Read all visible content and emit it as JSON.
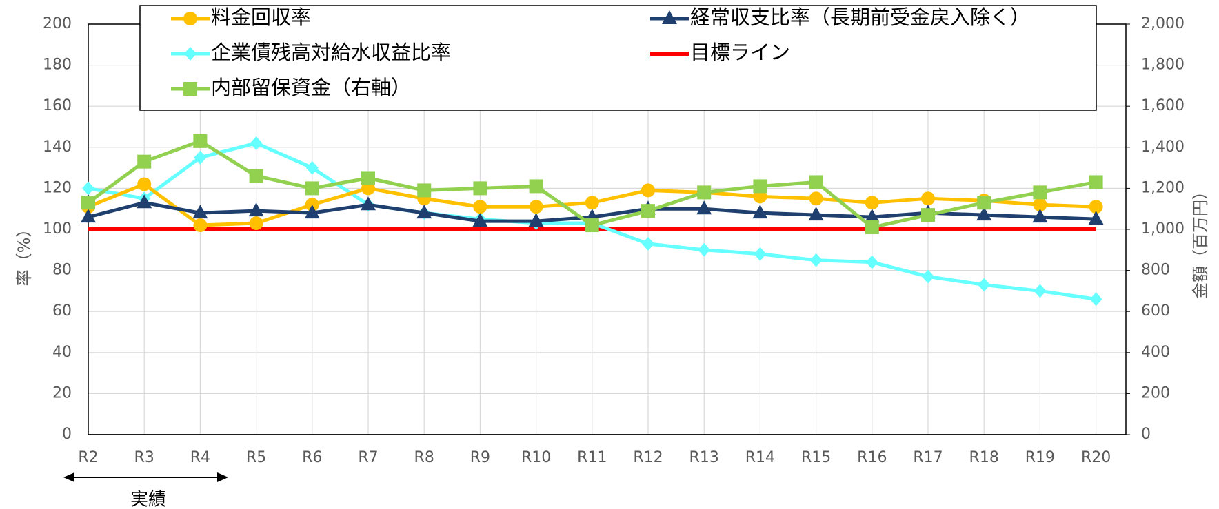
{
  "chart_data": {
    "type": "line",
    "categories": [
      "R2",
      "R3",
      "R4",
      "R5",
      "R6",
      "R7",
      "R8",
      "R9",
      "R10",
      "R11",
      "R12",
      "R13",
      "R14",
      "R15",
      "R16",
      "R17",
      "R18",
      "R19",
      "R20"
    ],
    "series": [
      {
        "name": "料金回収率",
        "color": "#FFC000",
        "marker": "circle",
        "values": [
          111,
          122,
          102,
          103,
          112,
          120,
          115,
          111,
          111,
          113,
          119,
          118,
          116,
          115,
          113,
          115,
          114,
          112,
          111
        ]
      },
      {
        "name": "経常収支比率（長期前受金戻入除く）",
        "color": "#1F3F6E",
        "marker": "triangle",
        "values": [
          106,
          113,
          108,
          109,
          108,
          112,
          108,
          104,
          104,
          106,
          110,
          110,
          108,
          107,
          106,
          108,
          107,
          106,
          105
        ]
      },
      {
        "name": "企業債残高対給水収益比率",
        "color": "#66FFFF",
        "marker": "diamond",
        "values": [
          120,
          115,
          135,
          142,
          130,
          112,
          108,
          105,
          103,
          103,
          93,
          90,
          88,
          85,
          84,
          77,
          73,
          70,
          66
        ]
      },
      {
        "name": "目標ライン",
        "color": "#FF0000",
        "marker": "none",
        "values": [
          100,
          100,
          100,
          100,
          100,
          100,
          100,
          100,
          100,
          100,
          100,
          100,
          100,
          100,
          100,
          100,
          100,
          100,
          100
        ]
      },
      {
        "name": "内部留保資金（右軸）",
        "color": "#92D050",
        "marker": "square",
        "axis": "y2",
        "values": [
          1130,
          1330,
          1430,
          1260,
          1200,
          1250,
          1190,
          1200,
          1210,
          1020,
          1090,
          1180,
          1210,
          1230,
          1010,
          1070,
          1130,
          1180,
          1230
        ]
      }
    ],
    "ylabel": "率（%）",
    "y2label": "金額（百万円）",
    "annotation": "実績",
    "ylim": [
      0,
      200
    ],
    "yticks": [
      0,
      20,
      40,
      60,
      80,
      100,
      120,
      140,
      160,
      180,
      200
    ],
    "y2lim": [
      0,
      2000
    ],
    "y2ticks": [
      0,
      200,
      400,
      600,
      800,
      {
        "value": 1000,
        "label": "1,000"
      },
      {
        "value": 1200,
        "label": "1,200"
      },
      {
        "value": 1400,
        "label": "1,400"
      },
      {
        "value": 1600,
        "label": "1,600"
      },
      {
        "value": 1800,
        "label": "1,800"
      },
      {
        "value": 2000,
        "label": "2,000"
      }
    ],
    "grid": true
  }
}
